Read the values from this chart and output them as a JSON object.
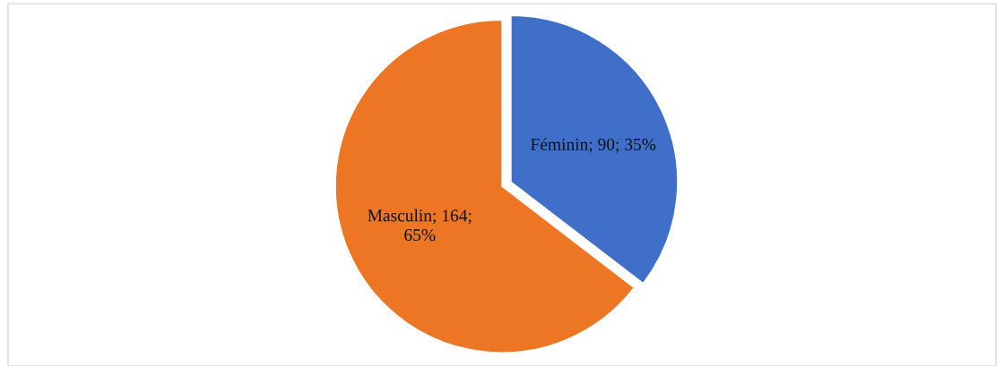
{
  "chart_data": {
    "type": "pie",
    "categories": [
      "Féminin",
      "Masculin"
    ],
    "values": [
      90,
      164
    ],
    "colors": [
      "#3f6fc9",
      "#ed7625"
    ],
    "value_labels": [
      "90; 35%",
      "164;\n65%"
    ],
    "legend": false
  }
}
